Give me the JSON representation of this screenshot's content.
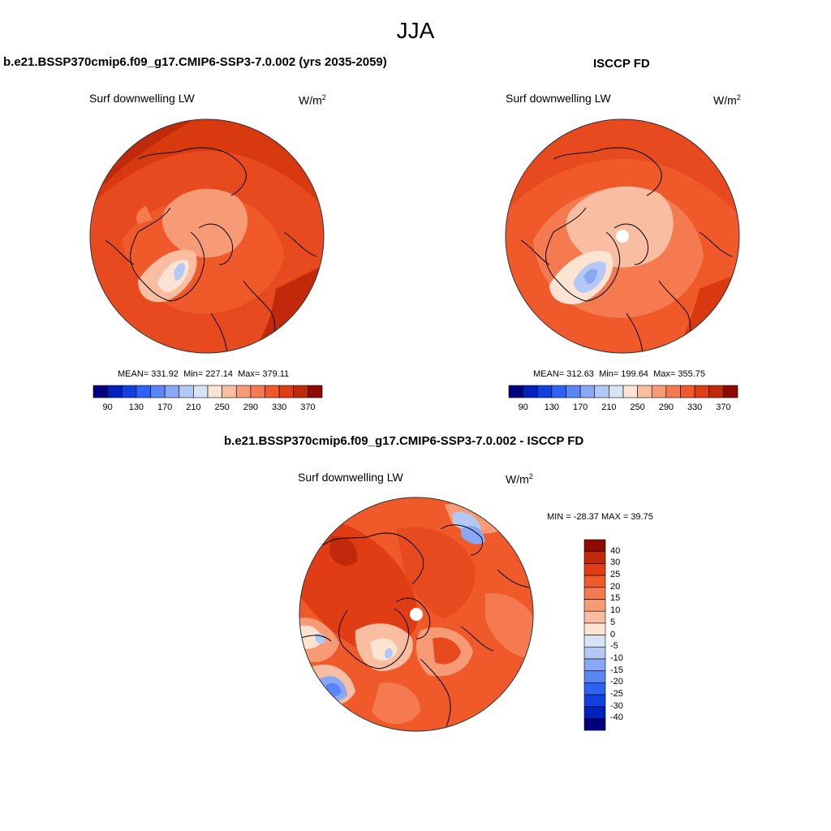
{
  "season": "JJA",
  "panels": [
    {
      "title": "b.e21.BSSP370cmip6.f09_g17.CMIP6-SSP3-7.0.002 (yrs 2035-2059)",
      "variable": "Surf downwelling LW",
      "units": "W/m",
      "units_exp": "2",
      "stats": {
        "mean": "331.92",
        "min": "227.14",
        "max": "379.11"
      },
      "stats_labels": {
        "mean": "MEAN=",
        "min": "Min=",
        "max": "Max="
      }
    },
    {
      "title": "ISCCP FD",
      "variable": "Surf downwelling LW",
      "units": "W/m",
      "units_exp": "2",
      "stats": {
        "mean": "312.63",
        "min": "199.64",
        "max": "355.75"
      },
      "stats_labels": {
        "mean": "MEAN=",
        "min": "Min=",
        "max": "Max="
      }
    },
    {
      "title": "b.e21.BSSP370cmip6.f09_g17.CMIP6-SSP3-7.0.002 - ISCCP FD",
      "variable": "Surf downwelling LW",
      "units": "W/m",
      "units_exp": "2",
      "range_text": "MIN = -28.37 MAX =  39.75"
    }
  ],
  "abs_colorbar": {
    "levels": [
      "90",
      "110",
      "130",
      "150",
      "170",
      "190",
      "210",
      "230",
      "250",
      "270",
      "290",
      "310",
      "330",
      "350",
      "370"
    ],
    "tick_labels": [
      "90",
      "130",
      "170",
      "210",
      "250",
      "290",
      "330",
      "370"
    ],
    "colors": [
      "#00007f",
      "#0020c0",
      "#1040e0",
      "#2d62f5",
      "#5a85f5",
      "#88a8f5",
      "#b3c8f5",
      "#d8e4f5",
      "#fde3d2",
      "#f9bea1",
      "#f79b77",
      "#f57a4f",
      "#f05a2a",
      "#e03d14",
      "#c02a0a",
      "#8c0a00"
    ]
  },
  "diff_colorbar": {
    "levels": [
      "-40",
      "-30",
      "-25",
      "-20",
      "-15",
      "-10",
      "-5",
      "0",
      "5",
      "10",
      "15",
      "20",
      "25",
      "30",
      "40"
    ],
    "colors": [
      "#00007f",
      "#0020c0",
      "#1040e0",
      "#2d62f5",
      "#5a85f5",
      "#88a8f5",
      "#b3c8f5",
      "#d8e4f5",
      "#fde3d2",
      "#f9bea1",
      "#f79b77",
      "#f57a4f",
      "#f05a2a",
      "#e03d14",
      "#c02a0a",
      "#8c0a00"
    ]
  }
}
